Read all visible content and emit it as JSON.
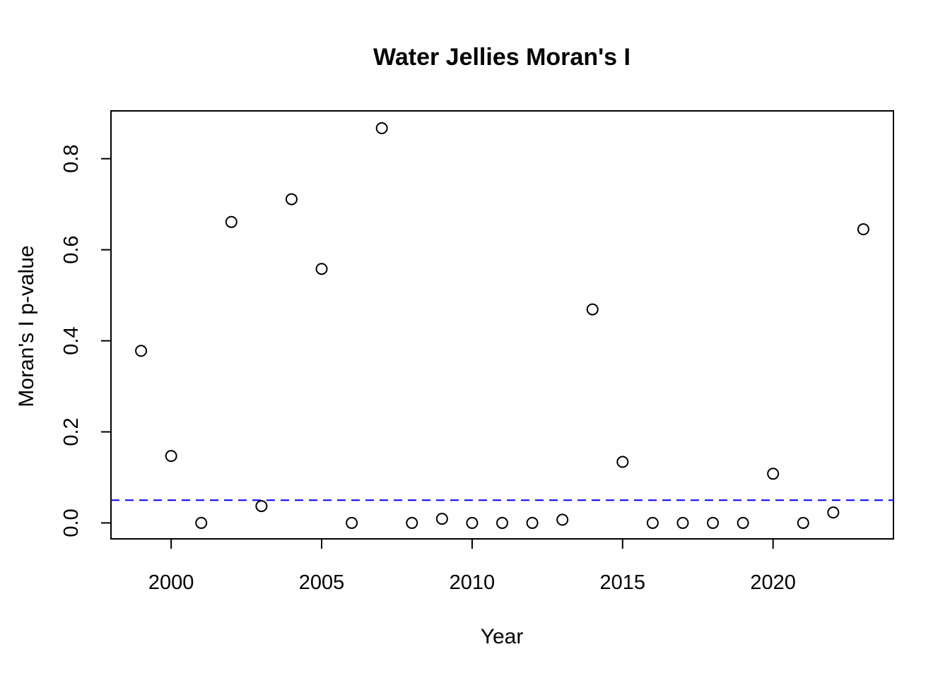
{
  "chart_data": {
    "type": "scatter",
    "title": "Water Jellies Moran's I",
    "xlabel": "Year",
    "ylabel": "Moran's I p-value",
    "xlim": [
      1998,
      2024
    ],
    "ylim": [
      -0.035,
      0.905
    ],
    "x_ticks": [
      2000,
      2005,
      2010,
      2015,
      2020
    ],
    "x_tick_labels": [
      "2000",
      "2005",
      "2010",
      "2015",
      "2020"
    ],
    "y_ticks": [
      0.0,
      0.2,
      0.4,
      0.6,
      0.8
    ],
    "y_tick_labels": [
      "0.0",
      "0.2",
      "0.4",
      "0.6",
      "0.8"
    ],
    "grid": false,
    "reference_line": {
      "y": 0.05,
      "color": "#0000ff",
      "style": "dashed"
    },
    "series": [
      {
        "marker": "open-circle",
        "color": "#000000",
        "x": [
          1999,
          2000,
          2001,
          2002,
          2003,
          2004,
          2005,
          2006,
          2007,
          2008,
          2009,
          2010,
          2011,
          2012,
          2013,
          2014,
          2015,
          2016,
          2017,
          2018,
          2019,
          2020,
          2021,
          2022,
          2023
        ],
        "y": [
          0.378,
          0.147,
          0.0,
          0.661,
          0.037,
          0.711,
          0.558,
          0.0,
          0.867,
          0.0,
          0.009,
          0.0,
          0.0,
          0.0,
          0.007,
          0.469,
          0.134,
          0.0,
          0.0,
          0.0,
          0.0,
          0.108,
          0.0,
          0.023,
          0.645
        ]
      }
    ]
  }
}
